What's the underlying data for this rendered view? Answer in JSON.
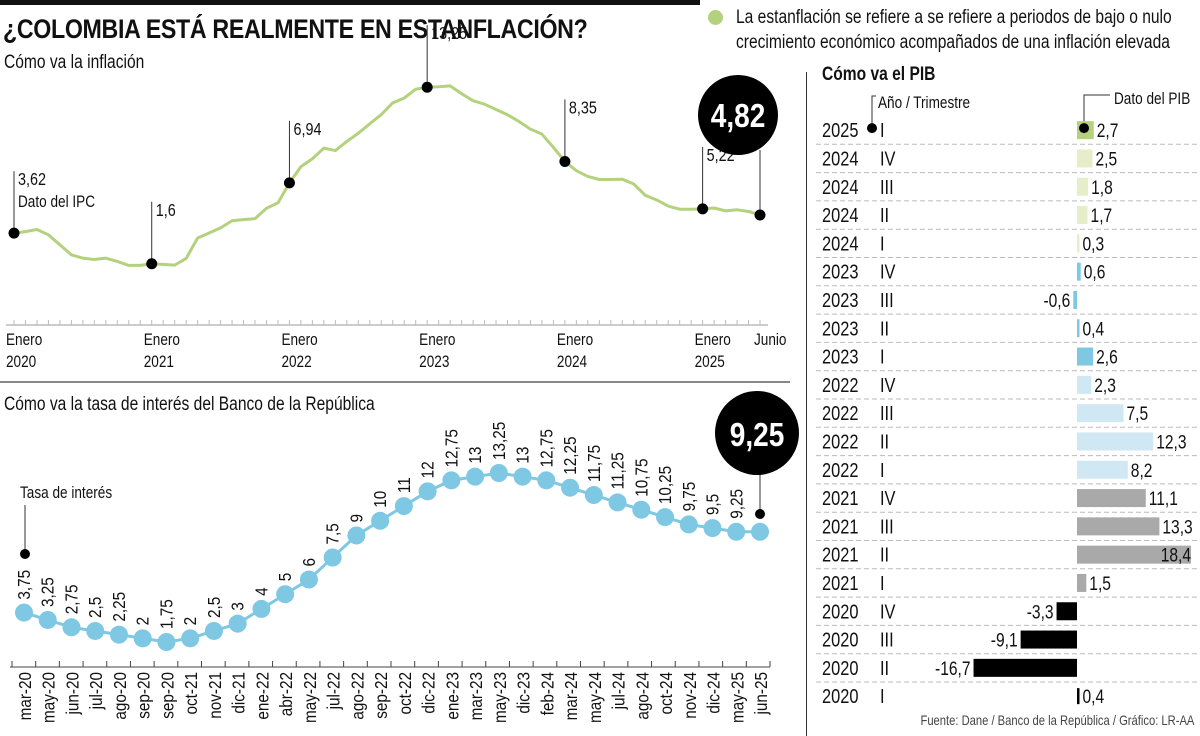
{
  "header": {
    "title": "¿COLOMBIA ESTÁ REALMENTE EN ESTANFLACIÓN?",
    "note": "La estanflación se refiere a se refiere a periodos de bajo o nulo crecimiento económico acompañados de una inflación elevada",
    "note_color": "#b4d27e"
  },
  "footer": {
    "source": "Fuente: Dane / Banco de la República / Gráfico: LR-AA"
  },
  "chart_data": [
    {
      "id": "inflation",
      "type": "line",
      "title": "Cómo va la inflación",
      "series_label": "Dato del IPC",
      "color": "#b4d27e",
      "x_ticks": [
        {
          "label": "Enero",
          "sub": "2020",
          "index": 0
        },
        {
          "label": "Enero",
          "sub": "2021",
          "index": 12
        },
        {
          "label": "Enero",
          "sub": "2022",
          "index": 24
        },
        {
          "label": "Enero",
          "sub": "2023",
          "index": 36
        },
        {
          "label": "Enero",
          "sub": "2024",
          "index": 48
        },
        {
          "label": "Enero",
          "sub": "2025",
          "index": 60
        },
        {
          "label": "Junio",
          "sub": "",
          "index": 65
        }
      ],
      "values": [
        3.62,
        3.72,
        3.86,
        3.51,
        2.85,
        2.19,
        1.97,
        1.88,
        1.97,
        1.75,
        1.49,
        1.49,
        1.6,
        1.56,
        1.51,
        1.95,
        3.3,
        3.63,
        3.97,
        4.44,
        4.51,
        4.58,
        5.26,
        5.62,
        6.94,
        8.01,
        8.53,
        9.23,
        9.07,
        9.67,
        10.21,
        10.84,
        11.44,
        12.22,
        12.53,
        13.12,
        13.25,
        13.28,
        13.34,
        12.82,
        12.36,
        12.13,
        11.78,
        11.43,
        10.99,
        10.48,
        10.15,
        9.28,
        8.35,
        7.74,
        7.36,
        7.16,
        7.16,
        7.18,
        6.86,
        6.12,
        5.81,
        5.41,
        5.2,
        5.2,
        5.22,
        5.28,
        5.09,
        5.16,
        5.05,
        4.82
      ],
      "highlights": [
        {
          "index": 0,
          "label": "3,62"
        },
        {
          "index": 12,
          "label": "1,6"
        },
        {
          "index": 24,
          "label": "6,94"
        },
        {
          "index": 36,
          "label": "13,25"
        },
        {
          "index": 48,
          "label": "8,35"
        },
        {
          "index": 60,
          "label": "5,22"
        }
      ],
      "latest": {
        "index": 65,
        "label": "4,82"
      },
      "ylim": [
        0,
        14
      ]
    },
    {
      "id": "interest",
      "type": "line",
      "title": "Cómo va la tasa de interés del Banco de la República",
      "series_label": "Tasa de interés",
      "color": "#7ec8e3",
      "categories": [
        "mar-20",
        "may-20",
        "jun-20",
        "jul-20",
        "ago-20",
        "sep-20",
        "sep-20",
        "oct-21",
        "nov-21",
        "dic-21",
        "ene-22",
        "abr-22",
        "may-22",
        "jul-22",
        "ago-22",
        "sep-22",
        "oct-22",
        "dic-22",
        "ene-23",
        "mar-23",
        "may-23",
        "dic-23",
        "feb-24",
        "mar-24",
        "may-24",
        "jul-24",
        "ago-24",
        "oct-24",
        "nov-24",
        "dic-24",
        "may-25",
        "jun-25"
      ],
      "values": [
        3.75,
        3.25,
        2.75,
        2.5,
        2.25,
        2,
        1.75,
        2,
        2.5,
        3,
        4,
        5,
        6,
        7.5,
        9,
        10,
        11,
        12,
        12.75,
        13,
        13.25,
        13,
        12.75,
        12.25,
        11.75,
        11.25,
        10.75,
        10.25,
        9.75,
        9.5,
        9.25,
        9.25
      ],
      "labels": [
        "3,75",
        "3,25",
        "2,75",
        "2,5",
        "2,25",
        "2",
        "1,75",
        "2",
        "2,5",
        "3",
        "4",
        "5",
        "6",
        "7,5",
        "9",
        "10",
        "11",
        "12",
        "12,75",
        "13",
        "13,25",
        "13",
        "12,75",
        "12,25",
        "11,75",
        "11,25",
        "10,75",
        "10,25",
        "9,75",
        "9,5",
        "9,25",
        ""
      ],
      "latest": {
        "label": "9,25"
      },
      "ylim": [
        0,
        15
      ]
    },
    {
      "id": "gdp",
      "type": "bar",
      "orientation": "horizontal",
      "title": "Cómo va el PIB",
      "row_header": "Año / Trimestre",
      "value_header": "Dato del PIB",
      "rows": [
        {
          "year": "2025",
          "quarter": "I",
          "value": 2.7,
          "label": "2,7",
          "color": "#b4d27e"
        },
        {
          "year": "2024",
          "quarter": "IV",
          "value": 2.5,
          "label": "2,5",
          "color": "#e6eec9"
        },
        {
          "year": "2024",
          "quarter": "III",
          "value": 1.8,
          "label": "1,8",
          "color": "#e6eec9"
        },
        {
          "year": "2024",
          "quarter": "II",
          "value": 1.7,
          "label": "1,7",
          "color": "#e6eec9"
        },
        {
          "year": "2024",
          "quarter": "I",
          "value": 0.3,
          "label": "0,3",
          "color": "#e6eec9"
        },
        {
          "year": "2023",
          "quarter": "IV",
          "value": 0.6,
          "label": "0,6",
          "color": "#7ec8e3"
        },
        {
          "year": "2023",
          "quarter": "III",
          "value": -0.6,
          "label": "-0,6",
          "color": "#7ec8e3"
        },
        {
          "year": "2023",
          "quarter": "II",
          "value": 0.4,
          "label": "0,4",
          "color": "#7ec8e3"
        },
        {
          "year": "2023",
          "quarter": "I",
          "value": 2.6,
          "label": "2,6",
          "color": "#7ec8e3"
        },
        {
          "year": "2022",
          "quarter": "IV",
          "value": 2.3,
          "label": "2,3",
          "color": "#cfe8f3"
        },
        {
          "year": "2022",
          "quarter": "III",
          "value": 7.5,
          "label": "7,5",
          "color": "#cfe8f3"
        },
        {
          "year": "2022",
          "quarter": "II",
          "value": 12.3,
          "label": "12,3",
          "color": "#cfe8f3"
        },
        {
          "year": "2022",
          "quarter": "I",
          "value": 8.2,
          "label": "8,2",
          "color": "#cfe8f3"
        },
        {
          "year": "2021",
          "quarter": "IV",
          "value": 11.1,
          "label": "11,1",
          "color": "#a9a9a9"
        },
        {
          "year": "2021",
          "quarter": "III",
          "value": 13.3,
          "label": "13,3",
          "color": "#a9a9a9"
        },
        {
          "year": "2021",
          "quarter": "II",
          "value": 18.4,
          "label": "18,4",
          "color": "#a9a9a9"
        },
        {
          "year": "2021",
          "quarter": "I",
          "value": 1.5,
          "label": "1,5",
          "color": "#a9a9a9"
        },
        {
          "year": "2020",
          "quarter": "IV",
          "value": -3.3,
          "label": "-3,3",
          "color": "#000000"
        },
        {
          "year": "2020",
          "quarter": "III",
          "value": -9.1,
          "label": "-9,1",
          "color": "#000000"
        },
        {
          "year": "2020",
          "quarter": "II",
          "value": -16.7,
          "label": "-16,7",
          "color": "#000000"
        },
        {
          "year": "2020",
          "quarter": "I",
          "value": 0.4,
          "label": "0,4",
          "color": "#000000"
        }
      ],
      "xlim": [
        -17,
        19
      ]
    }
  ]
}
